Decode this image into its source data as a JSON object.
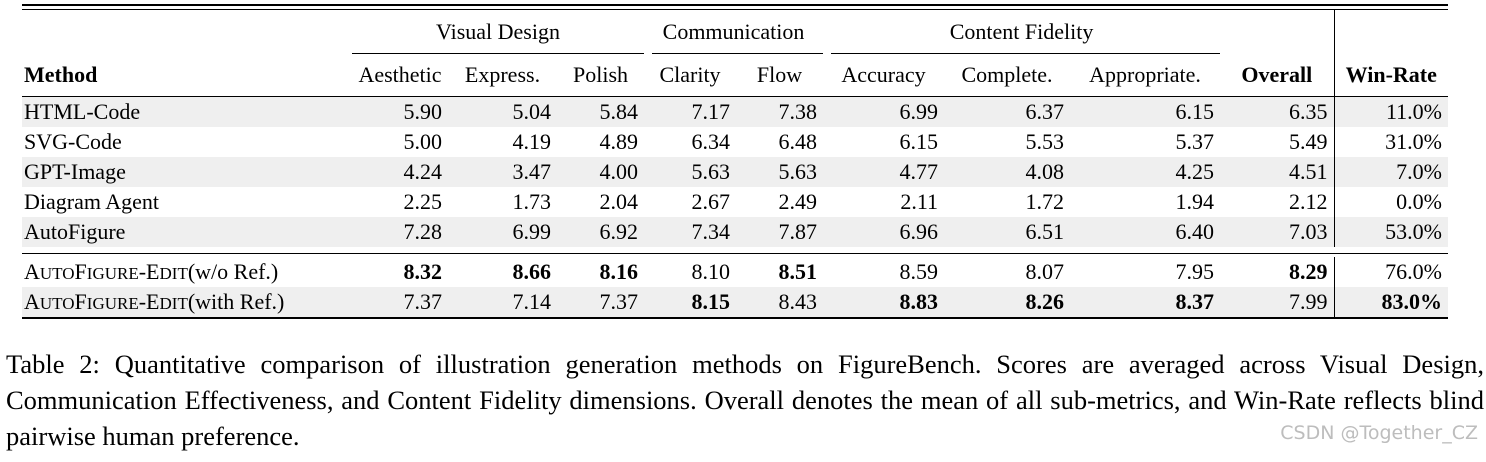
{
  "table": {
    "groups": {
      "visual_design": "Visual Design",
      "communication": "Communication",
      "content_fidelity": "Content Fidelity"
    },
    "columns": {
      "method": "Method",
      "aesthetic": "Aesthetic",
      "express": "Express.",
      "polish": "Polish",
      "clarity": "Clarity",
      "flow": "Flow",
      "accuracy": "Accuracy",
      "complete": "Complete.",
      "appropriate": "Appropriate.",
      "overall": "Overall",
      "winrate": "Win-Rate"
    },
    "rows": [
      {
        "method": "HTML-Code",
        "v": [
          "5.90",
          "5.04",
          "5.84",
          "7.17",
          "7.38",
          "6.99",
          "6.37",
          "6.15",
          "6.35",
          "11.0%"
        ]
      },
      {
        "method": "SVG-Code",
        "v": [
          "5.00",
          "4.19",
          "4.89",
          "6.34",
          "6.48",
          "6.15",
          "5.53",
          "5.37",
          "5.49",
          "31.0%"
        ]
      },
      {
        "method": "GPT-Image",
        "v": [
          "4.24",
          "3.47",
          "4.00",
          "5.63",
          "5.63",
          "4.77",
          "4.08",
          "4.25",
          "4.51",
          "7.0%"
        ]
      },
      {
        "method": "Diagram Agent",
        "v": [
          "2.25",
          "1.73",
          "2.04",
          "2.67",
          "2.49",
          "2.11",
          "1.72",
          "1.94",
          "2.12",
          "0.0%"
        ]
      },
      {
        "method": "AutoFigure",
        "v": [
          "7.28",
          "6.99",
          "6.92",
          "7.34",
          "7.87",
          "6.96",
          "6.51",
          "6.40",
          "7.03",
          "53.0%"
        ]
      },
      {
        "method_parts": [
          "A",
          "UTO",
          "F",
          "IGURE",
          "-E",
          "DIT",
          "(w/o Ref.)"
        ],
        "v": [
          "8.32",
          "8.66",
          "8.16",
          "8.10",
          "8.51",
          "8.59",
          "8.07",
          "7.95",
          "8.29",
          "76.0%"
        ]
      },
      {
        "method_parts": [
          "A",
          "UTO",
          "F",
          "IGURE",
          "-E",
          "DIT",
          "(with Ref.)"
        ],
        "v": [
          "7.37",
          "7.14",
          "7.37",
          "8.15",
          "8.43",
          "8.83",
          "8.26",
          "8.37",
          "7.99",
          "83.0%"
        ]
      }
    ]
  },
  "caption": "Table 2: Quantitative comparison of illustration generation methods on FigureBench. Scores are averaged across Visual Design, Communication Effectiveness, and Content Fidelity dimensions. Overall denotes the mean of all sub-metrics, and Win-Rate reflects blind pairwise human preference.",
  "watermark": "CSDN @Together_CZ"
}
